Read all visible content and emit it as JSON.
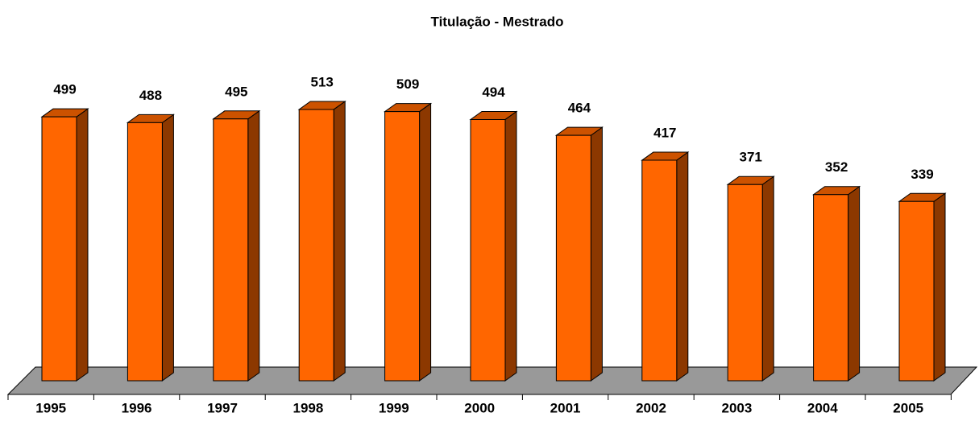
{
  "chart_data": {
    "type": "bar3d",
    "title": "Titulação - Mestrado",
    "categories": [
      "1995",
      "1996",
      "1997",
      "1998",
      "1999",
      "2000",
      "2001",
      "2002",
      "2003",
      "2004",
      "2005"
    ],
    "values": [
      499,
      488,
      495,
      513,
      509,
      494,
      464,
      417,
      371,
      352,
      339
    ],
    "color": "#ff6600"
  }
}
